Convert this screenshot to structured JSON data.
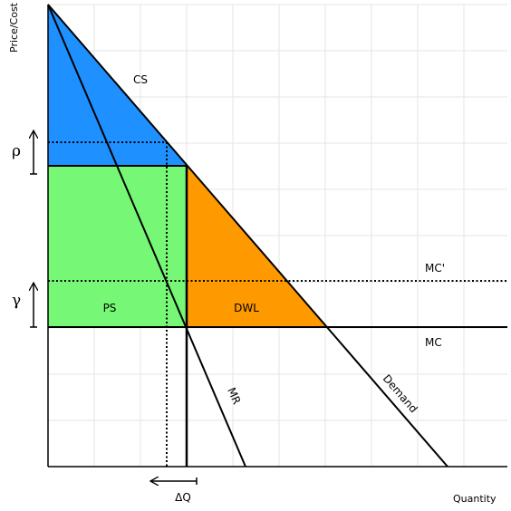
{
  "axes": {
    "y_label": "Price/Cost",
    "x_label": "Quantity"
  },
  "regions": {
    "cs": {
      "label": "CS",
      "color": "#1e90ff"
    },
    "ps": {
      "label": "PS",
      "color": "#76f776"
    },
    "dwl": {
      "label": "DWL",
      "color": "#ff9900"
    }
  },
  "curves": {
    "mr": "MR",
    "demand": "Demand",
    "mc": "MC",
    "mc_prime": "MC'"
  },
  "markers": {
    "rho": "ρ",
    "gamma": "γ",
    "delta_q": "ΔQ"
  },
  "colors": {
    "grid": "#e6e6e6",
    "line": "#000000"
  }
}
